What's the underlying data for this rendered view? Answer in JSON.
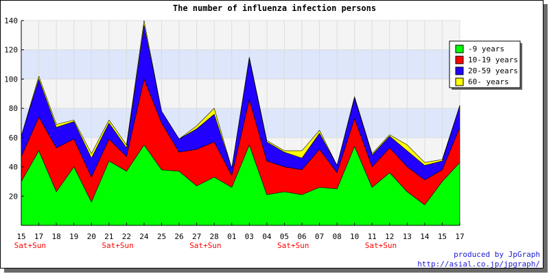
{
  "chart_data": {
    "type": "area",
    "stacked": true,
    "title": "The number of influenza infection persons",
    "xlabel": "",
    "ylabel": "",
    "ylim": [
      0,
      140
    ],
    "yticks": [
      20,
      40,
      60,
      80,
      100,
      120,
      140
    ],
    "grid": true,
    "legend_position": "right",
    "categories": [
      "15",
      "17",
      "18",
      "19",
      "20",
      "21",
      "22",
      "24",
      "25",
      "26",
      "27",
      "28",
      "01",
      "03",
      "04",
      "05",
      "06",
      "07",
      "08",
      "10",
      "11",
      "12",
      "13",
      "14",
      "15",
      "17"
    ],
    "weekend_label": "Sat+Sun",
    "weekend_after": [
      0,
      5,
      10,
      15,
      20
    ],
    "series": [
      {
        "name": "-9 years",
        "color": "#00ff00",
        "values": [
          30,
          51,
          23,
          40,
          16,
          44,
          37,
          55,
          38,
          37,
          27,
          33,
          26,
          55,
          21,
          23,
          21,
          26,
          25,
          54,
          26,
          36,
          23,
          14,
          30,
          43
        ]
      },
      {
        "name": "10-19 years",
        "color": "#ff0000",
        "values": [
          17,
          23,
          30,
          19,
          17,
          15,
          10,
          45,
          32,
          13,
          25,
          24,
          8,
          31,
          23,
          17,
          17,
          26,
          11,
          19,
          14,
          17,
          17,
          17,
          8,
          24
        ]
      },
      {
        "name": "20-59 years",
        "color": "#2200ff",
        "values": [
          14,
          26,
          14,
          12,
          13,
          11,
          6,
          37,
          8,
          9,
          14,
          19,
          5,
          28,
          13,
          10,
          8,
          11,
          5,
          14,
          8,
          8,
          11,
          10,
          6,
          15
        ]
      },
      {
        "name": "60- years",
        "color": "#ffff00",
        "values": [
          0,
          2,
          2,
          1,
          3,
          2,
          2,
          3,
          0,
          0,
          2,
          4,
          0,
          1,
          1,
          1,
          5,
          2,
          0,
          1,
          1,
          1,
          4,
          2,
          1,
          0
        ]
      }
    ]
  },
  "credits": {
    "line1": "produced by JpGraph",
    "line2": "http://asial.co.jp/jpgraph/"
  }
}
